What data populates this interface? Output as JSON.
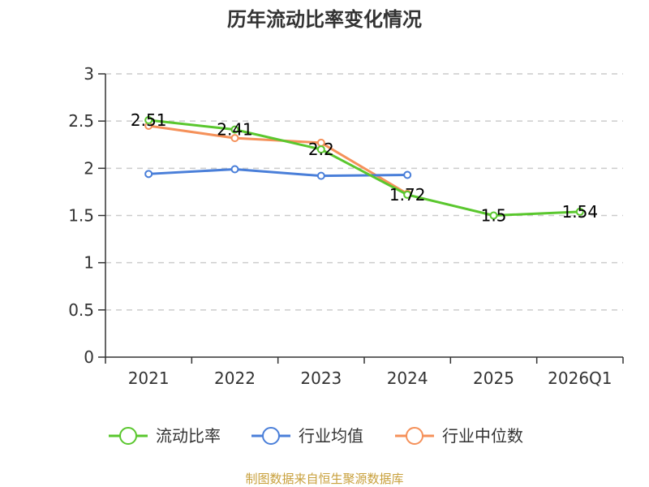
{
  "chart_data": {
    "type": "line",
    "title": "历年流动比率变化情况",
    "categories": [
      "2021",
      "2022",
      "2023",
      "2024",
      "2025",
      "2026Q1"
    ],
    "ylim": [
      0,
      3
    ],
    "yticks": [
      0,
      0.5,
      1,
      1.5,
      2,
      2.5,
      3
    ],
    "ytick_labels": [
      "0",
      "0.5",
      "1",
      "1.5",
      "2",
      "2.5",
      "3"
    ],
    "grid": true,
    "legend_position": "bottom",
    "series": [
      {
        "name": "流动比率",
        "color": "#5ac72e",
        "values": [
          2.51,
          2.41,
          2.2,
          1.72,
          1.5,
          1.54
        ],
        "labels": [
          "2.51",
          "2.41",
          "2.2",
          "1.72",
          "1.5",
          "1.54"
        ]
      },
      {
        "name": "行业均值",
        "color": "#4a7fd9",
        "values": [
          1.94,
          1.99,
          1.92,
          1.93,
          null,
          null
        ]
      },
      {
        "name": "行业中位数",
        "color": "#f5915a",
        "values": [
          2.45,
          2.32,
          2.27,
          1.73,
          null,
          null
        ]
      }
    ]
  },
  "source_text": "制图数据来自恒生聚源数据库",
  "source_color": "#c8a03c"
}
